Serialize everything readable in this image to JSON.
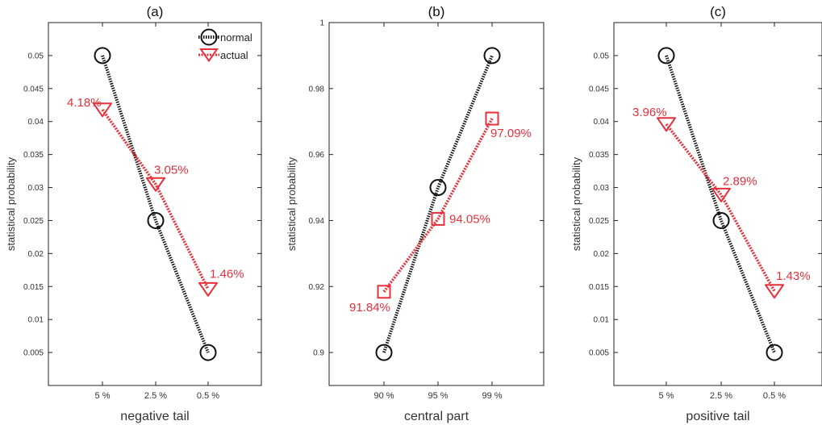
{
  "chart_data": [
    {
      "type": "line",
      "title": "(a)",
      "xlabel": "negative tail",
      "ylabel": "statistical probability",
      "categories": [
        "5 %",
        "2.5 %",
        "0.5 %"
      ],
      "ylim": [
        0,
        0.055
      ],
      "yticks": [
        "0.005",
        "0.01",
        "0.015",
        "0.02",
        "0.025",
        "0.03",
        "0.035",
        "0.04",
        "0.045",
        "0.05"
      ],
      "marker_actual": "triangle",
      "legend": {
        "entries": [
          "normal",
          "actual"
        ],
        "location": "top-right"
      },
      "series": [
        {
          "name": "normal",
          "values": [
            0.05,
            0.025,
            0.005
          ],
          "color": "#111111",
          "labels": [
            "",
            "",
            ""
          ]
        },
        {
          "name": "actual",
          "values": [
            0.0418,
            0.0305,
            0.0146
          ],
          "color": "#e8303a",
          "labels": [
            "4.18%",
            "3.05%",
            "1.46%"
          ]
        }
      ]
    },
    {
      "type": "line",
      "title": "(b)",
      "xlabel": "central part",
      "ylabel": "statistical probability",
      "categories": [
        "90 %",
        "95 %",
        "99 %"
      ],
      "ylim": [
        0.89,
        1.0
      ],
      "yticks": [
        "0.9",
        "0.92",
        "0.94",
        "0.96",
        "0.98",
        "1"
      ],
      "marker_actual": "square",
      "series": [
        {
          "name": "normal",
          "values": [
            0.9,
            0.95,
            0.99
          ],
          "color": "#111111",
          "labels": [
            "",
            "",
            ""
          ]
        },
        {
          "name": "actual",
          "values": [
            0.9184,
            0.9405,
            0.9709
          ],
          "color": "#e8303a",
          "labels": [
            "91.84%",
            "94.05%",
            "97.09%"
          ]
        }
      ]
    },
    {
      "type": "line",
      "title": "(c)",
      "xlabel": "positive tail",
      "ylabel": "statistical probability",
      "categories": [
        "5 %",
        "2.5 %",
        "0.5 %"
      ],
      "ylim": [
        0,
        0.055
      ],
      "yticks": [
        "0.005",
        "0.01",
        "0.015",
        "0.02",
        "0.025",
        "0.03",
        "0.035",
        "0.04",
        "0.045",
        "0.05"
      ],
      "marker_actual": "triangle",
      "series": [
        {
          "name": "normal",
          "values": [
            0.05,
            0.025,
            0.005
          ],
          "color": "#111111",
          "labels": [
            "",
            "",
            ""
          ]
        },
        {
          "name": "actual",
          "values": [
            0.0396,
            0.0289,
            0.0143
          ],
          "color": "#e8303a",
          "labels": [
            "3.96%",
            "2.89%",
            "1.43%"
          ]
        }
      ]
    }
  ]
}
